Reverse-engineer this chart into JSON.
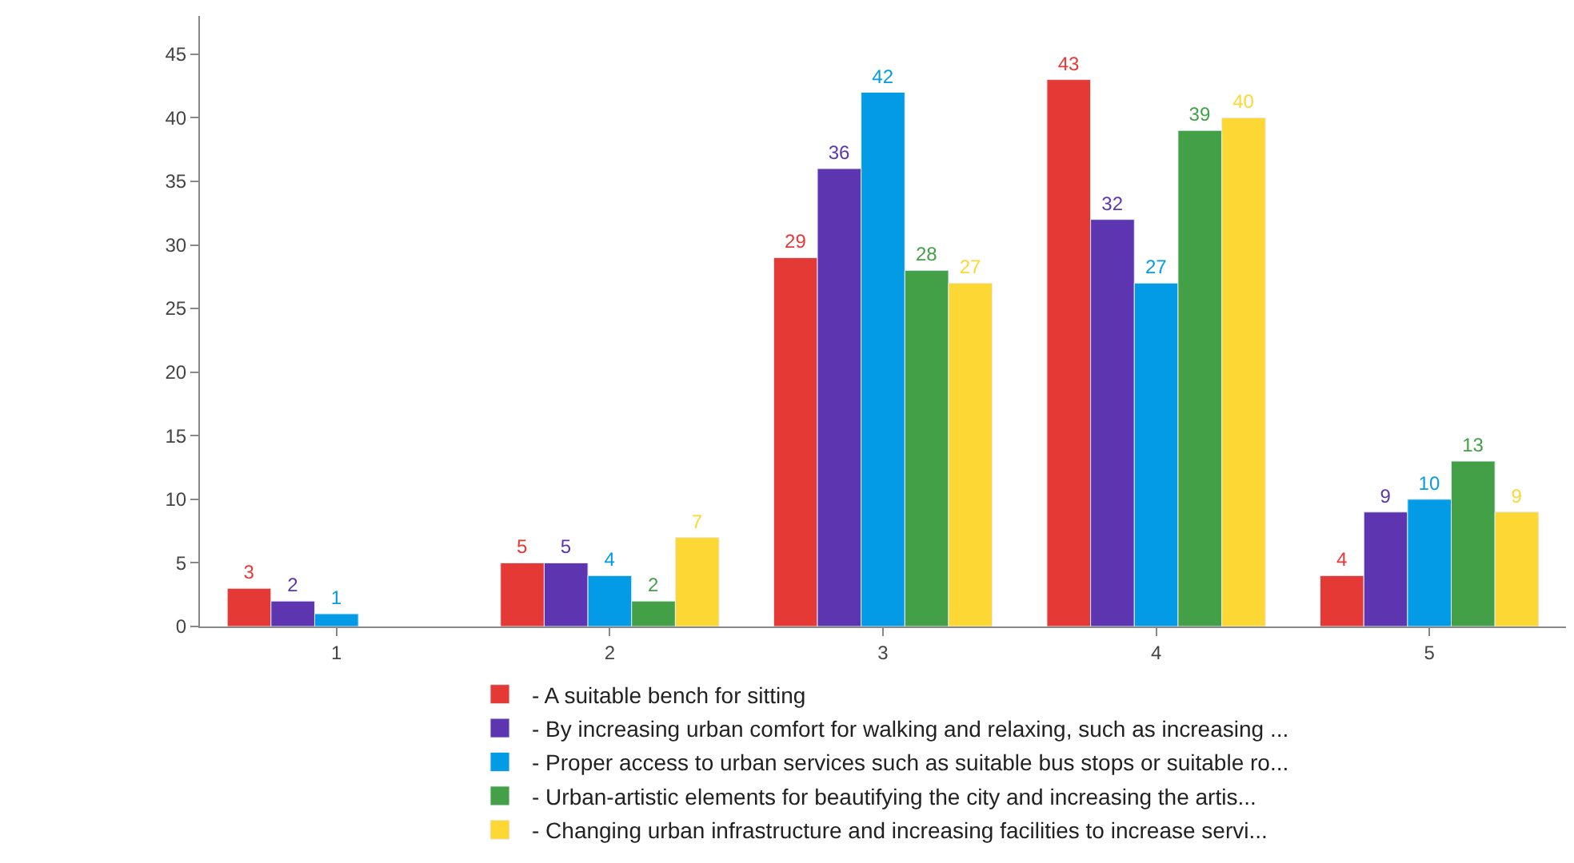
{
  "chart_data": {
    "type": "bar",
    "categories": [
      "1",
      "2",
      "3",
      "4",
      "5"
    ],
    "series": [
      {
        "name": "- A suitable bench for sitting",
        "color": "#e53935",
        "values": [
          3,
          5,
          29,
          43,
          4
        ]
      },
      {
        "name": "- By increasing urban comfort for walking and relaxing, such as increasing ...",
        "color": "#5e35b1",
        "values": [
          2,
          5,
          36,
          32,
          9
        ]
      },
      {
        "name": "- Proper access to urban services such as suitable bus stops or suitable ro...",
        "color": "#039be5",
        "values": [
          1,
          4,
          42,
          27,
          10
        ]
      },
      {
        "name": "- Urban-artistic elements for beautifying the city and increasing the artis...",
        "color": "#43a047",
        "values": [
          null,
          2,
          28,
          39,
          13
        ]
      },
      {
        "name": "- Changing urban infrastructure and increasing facilities to increase servi...",
        "color": "#fdd835",
        "values": [
          null,
          7,
          27,
          40,
          9
        ]
      }
    ],
    "ylim": [
      0,
      48
    ],
    "yticks": [
      0,
      5,
      10,
      15,
      20,
      25,
      30,
      35,
      40,
      45
    ],
    "legend": "bottom",
    "data_labels": true
  }
}
